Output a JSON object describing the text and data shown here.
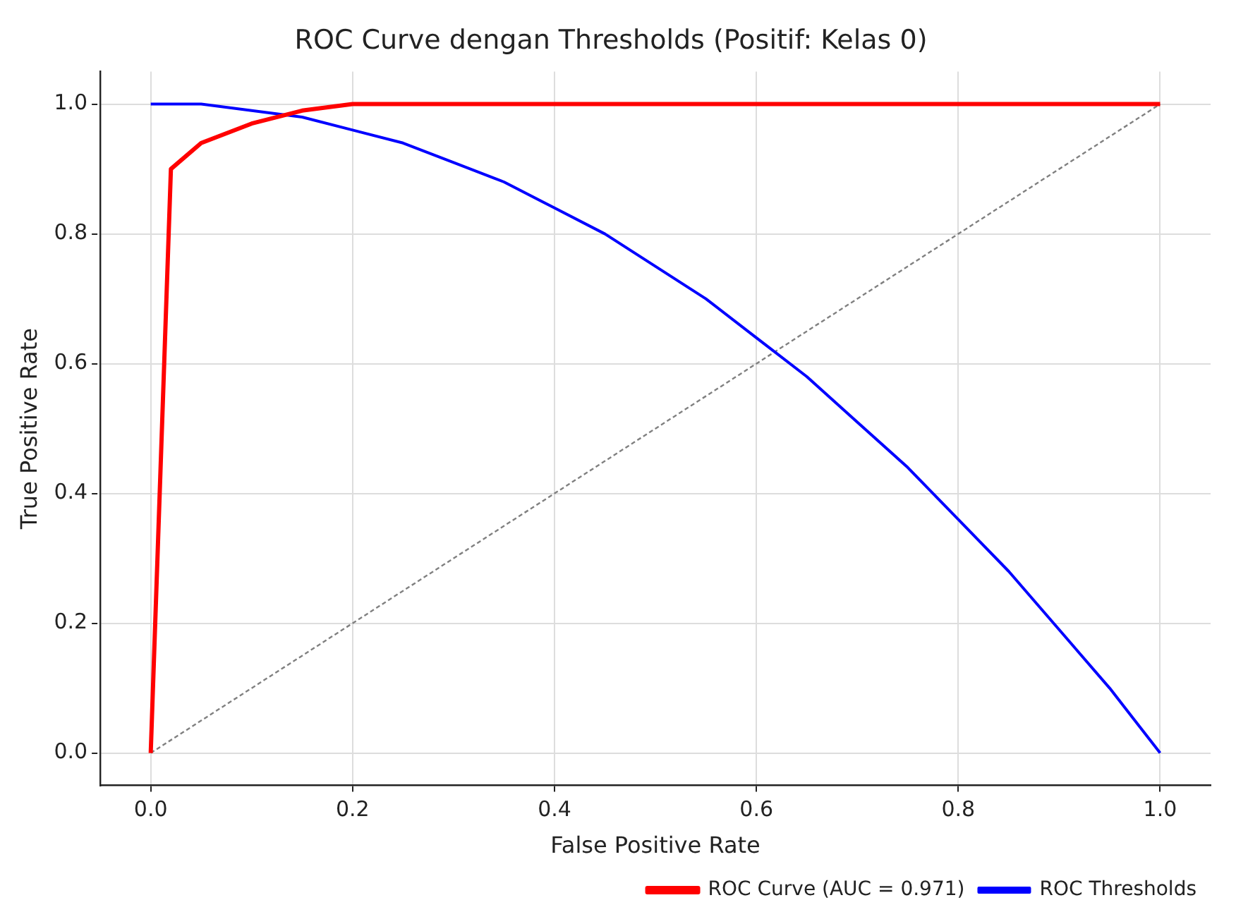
{
  "chart_data": {
    "type": "line",
    "title": "ROC Curve dengan Thresholds (Positif: Kelas 0)",
    "xlabel": "False Positive Rate",
    "ylabel": "True Positive Rate",
    "xlim": [
      -0.05,
      1.05
    ],
    "ylim": [
      -0.05,
      1.05
    ],
    "xticks": [
      {
        "value": 0,
        "label": "0.0"
      },
      0.2,
      0.4,
      0.6,
      0.8,
      {
        "value": 1,
        "label": "1.0"
      }
    ],
    "yticks": [
      {
        "value": 0,
        "label": "0.0"
      },
      0.2,
      0.4,
      0.6,
      0.8,
      {
        "value": 1,
        "label": "1.0"
      }
    ],
    "grid": true,
    "legend": "bottom right",
    "marker": "none",
    "series": [
      {
        "name": "ROC Curve (AUC = 0.971)",
        "color": "#ff0000",
        "x": [
          0,
          0.02,
          0.05,
          0.1,
          0.15,
          0.2,
          1
        ],
        "values": [
          0,
          0.9,
          0.94,
          0.97,
          0.99,
          1,
          1
        ]
      },
      {
        "name": "ROC Thresholds",
        "color": "#0000ff",
        "x": [
          0,
          0.05,
          0.1,
          0.15,
          0.2,
          0.25,
          0.3,
          0.35,
          0.4,
          0.45,
          0.5,
          0.55,
          0.6,
          0.65,
          0.7,
          0.75,
          0.8,
          0.85,
          0.9,
          0.95,
          1
        ],
        "values": [
          1,
          1,
          0.99,
          0.98,
          0.96,
          0.94,
          0.91,
          0.88,
          0.84,
          0.8,
          0.75,
          0.7,
          0.64,
          0.58,
          0.51,
          0.44,
          0.36,
          0.28,
          0.19,
          0.1,
          0
        ]
      },
      {
        "color": "#808080",
        "line_style": "dashed",
        "x": [
          0,
          1
        ],
        "values": [
          0,
          1
        ]
      }
    ]
  }
}
